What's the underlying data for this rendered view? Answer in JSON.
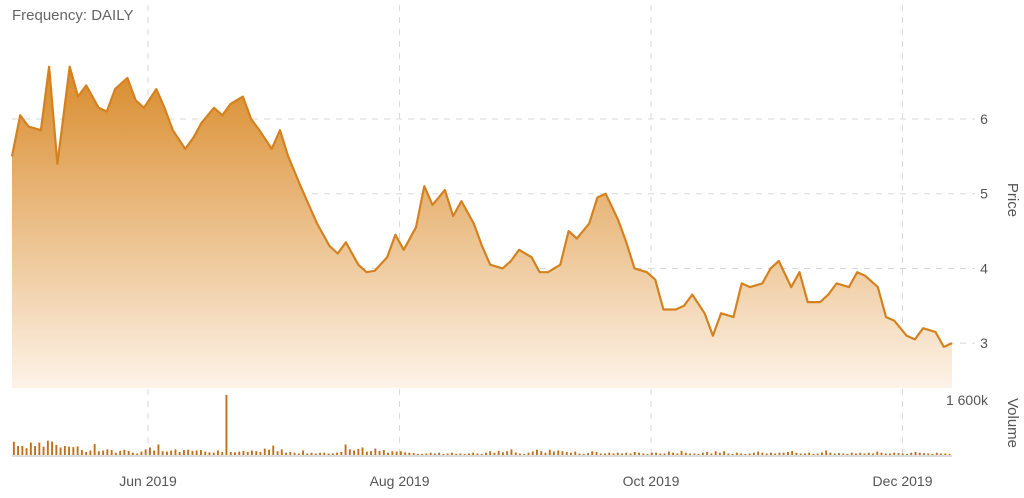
{
  "header": {
    "frequency_label": "Frequency: DAILY"
  },
  "colors": {
    "line": "#d4821f",
    "fill_top": "#d98b2b",
    "fill_bottom": "#fdf3e8",
    "bar": "#c0701a",
    "grid": "#d8d8d8"
  },
  "chart_data": {
    "type": "area",
    "title": "",
    "x_tick_labels": [
      "Jun 2019",
      "Aug 2019",
      "Oct 2019",
      "Dec 2019"
    ],
    "x_ticks": [
      "2019-06-01",
      "2019-08-01",
      "2019-10-01",
      "2019-12-01"
    ],
    "xlim": [
      "2019-04-29",
      "2019-12-13"
    ],
    "price": {
      "ylabel": "Price",
      "ylim": [
        2.4,
        6.95
      ],
      "yticks": [
        3,
        4,
        5,
        6
      ],
      "series": [
        {
          "values": [
            [
              "2019-04-29",
              5.5
            ],
            [
              "2019-05-01",
              6.05
            ],
            [
              "2019-05-03",
              5.9
            ],
            [
              "2019-05-06",
              5.85
            ],
            [
              "2019-05-08",
              6.7
            ],
            [
              "2019-05-10",
              5.4
            ],
            [
              "2019-05-13",
              6.7
            ],
            [
              "2019-05-15",
              6.3
            ],
            [
              "2019-05-17",
              6.45
            ],
            [
              "2019-05-20",
              6.15
            ],
            [
              "2019-05-22",
              6.1
            ],
            [
              "2019-05-24",
              6.4
            ],
            [
              "2019-05-27",
              6.55
            ],
            [
              "2019-05-29",
              6.25
            ],
            [
              "2019-05-31",
              6.15
            ],
            [
              "2019-06-03",
              6.4
            ],
            [
              "2019-06-05",
              6.15
            ],
            [
              "2019-06-07",
              5.85
            ],
            [
              "2019-06-10",
              5.6
            ],
            [
              "2019-06-12",
              5.75
            ],
            [
              "2019-06-14",
              5.95
            ],
            [
              "2019-06-17",
              6.15
            ],
            [
              "2019-06-19",
              6.05
            ],
            [
              "2019-06-21",
              6.2
            ],
            [
              "2019-06-24",
              6.3
            ],
            [
              "2019-06-26",
              6.0
            ],
            [
              "2019-06-28",
              5.85
            ],
            [
              "2019-07-01",
              5.6
            ],
            [
              "2019-07-03",
              5.85
            ],
            [
              "2019-07-05",
              5.5
            ],
            [
              "2019-07-08",
              5.1
            ],
            [
              "2019-07-10",
              4.85
            ],
            [
              "2019-07-12",
              4.6
            ],
            [
              "2019-07-15",
              4.3
            ],
            [
              "2019-07-17",
              4.2
            ],
            [
              "2019-07-19",
              4.35
            ],
            [
              "2019-07-22",
              4.05
            ],
            [
              "2019-07-24",
              3.95
            ],
            [
              "2019-07-26",
              3.97
            ],
            [
              "2019-07-29",
              4.15
            ],
            [
              "2019-07-31",
              4.45
            ],
            [
              "2019-08-02",
              4.25
            ],
            [
              "2019-08-05",
              4.55
            ],
            [
              "2019-08-07",
              5.1
            ],
            [
              "2019-08-09",
              4.85
            ],
            [
              "2019-08-12",
              5.05
            ],
            [
              "2019-08-14",
              4.7
            ],
            [
              "2019-08-16",
              4.9
            ],
            [
              "2019-08-19",
              4.6
            ],
            [
              "2019-08-21",
              4.3
            ],
            [
              "2019-08-23",
              4.05
            ],
            [
              "2019-08-26",
              4.0
            ],
            [
              "2019-08-28",
              4.1
            ],
            [
              "2019-08-30",
              4.25
            ],
            [
              "2019-09-02",
              4.15
            ],
            [
              "2019-09-04",
              3.95
            ],
            [
              "2019-09-06",
              3.95
            ],
            [
              "2019-09-09",
              4.05
            ],
            [
              "2019-09-11",
              4.5
            ],
            [
              "2019-09-13",
              4.4
            ],
            [
              "2019-09-16",
              4.6
            ],
            [
              "2019-09-18",
              4.95
            ],
            [
              "2019-09-20",
              5.0
            ],
            [
              "2019-09-23",
              4.65
            ],
            [
              "2019-09-25",
              4.35
            ],
            [
              "2019-09-27",
              4.0
            ],
            [
              "2019-09-30",
              3.95
            ],
            [
              "2019-10-02",
              3.85
            ],
            [
              "2019-10-04",
              3.45
            ],
            [
              "2019-10-07",
              3.45
            ],
            [
              "2019-10-09",
              3.5
            ],
            [
              "2019-10-11",
              3.65
            ],
            [
              "2019-10-14",
              3.4
            ],
            [
              "2019-10-16",
              3.1
            ],
            [
              "2019-10-18",
              3.4
            ],
            [
              "2019-10-21",
              3.35
            ],
            [
              "2019-10-23",
              3.8
            ],
            [
              "2019-10-25",
              3.75
            ],
            [
              "2019-10-28",
              3.8
            ],
            [
              "2019-10-30",
              4.0
            ],
            [
              "2019-11-01",
              4.1
            ],
            [
              "2019-11-04",
              3.75
            ],
            [
              "2019-11-06",
              3.95
            ],
            [
              "2019-11-08",
              3.55
            ],
            [
              "2019-11-11",
              3.55
            ],
            [
              "2019-11-13",
              3.65
            ],
            [
              "2019-11-15",
              3.8
            ],
            [
              "2019-11-18",
              3.75
            ],
            [
              "2019-11-20",
              3.95
            ],
            [
              "2019-11-22",
              3.9
            ],
            [
              "2019-11-25",
              3.75
            ],
            [
              "2019-11-27",
              3.35
            ],
            [
              "2019-11-29",
              3.3
            ],
            [
              "2019-12-02",
              3.1
            ],
            [
              "2019-12-04",
              3.05
            ],
            [
              "2019-12-06",
              3.2
            ],
            [
              "2019-12-09",
              3.15
            ],
            [
              "2019-12-11",
              2.95
            ],
            [
              "2019-12-13",
              3.0
            ]
          ]
        }
      ]
    },
    "volume": {
      "ylabel": "Volume",
      "ytick_label": "1 600k",
      "ytick_value": 1600,
      "ylim": [
        0,
        1650
      ],
      "values": [
        350,
        240,
        240,
        180,
        330,
        240,
        330,
        220,
        380,
        360,
        270,
        200,
        240,
        220,
        210,
        230,
        130,
        80,
        120,
        290,
        100,
        120,
        150,
        130,
        60,
        110,
        140,
        110,
        60,
        40,
        90,
        150,
        200,
        120,
        280,
        100,
        90,
        120,
        150,
        80,
        130,
        140,
        110,
        120,
        130,
        90,
        70,
        60,
        120,
        80,
        1600,
        80,
        70,
        90,
        110,
        80,
        120,
        100,
        80,
        170,
        140,
        250,
        100,
        150,
        60,
        80,
        60,
        40,
        120,
        40,
        60,
        40,
        60,
        60,
        40,
        40,
        60,
        80,
        280,
        150,
        120,
        160,
        200,
        90,
        100,
        170,
        110,
        130,
        60,
        100,
        90,
        100,
        70,
        60,
        50,
        30,
        30,
        40,
        60,
        40,
        60,
        30,
        40,
        60,
        30,
        40,
        30,
        40,
        60,
        40,
        30,
        60,
        100,
        60,
        110,
        70,
        100,
        150,
        70,
        40,
        30,
        60,
        90,
        140,
        100,
        60,
        140,
        90,
        120,
        100,
        80,
        60,
        90,
        40,
        30,
        50,
        100,
        80,
        40,
        40,
        60,
        40,
        60,
        40,
        60,
        40,
        80,
        60,
        40,
        30,
        60,
        60,
        40,
        40,
        90,
        60,
        40,
        110,
        60,
        40,
        40,
        30,
        60,
        80,
        40,
        100,
        60,
        100,
        40,
        30,
        60,
        40,
        30,
        40,
        60,
        90,
        60,
        40,
        60,
        40,
        60,
        60,
        80,
        110,
        60,
        40,
        40,
        60,
        30,
        40,
        70,
        120,
        60,
        40,
        50,
        40,
        30,
        60,
        40,
        60,
        40,
        60,
        40,
        90,
        60,
        40,
        40,
        60,
        50,
        40,
        30,
        60,
        80,
        60,
        50,
        40,
        30,
        60,
        40,
        40,
        30
      ]
    },
    "grid": true,
    "legend": "none"
  }
}
